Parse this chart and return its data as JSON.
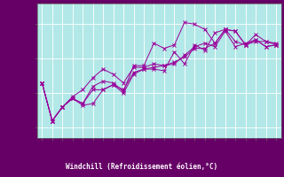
{
  "background_color": "#b3e8e8",
  "plot_bg_color": "#b3e8e8",
  "grid_color": "#ffffff",
  "line_color": "#990099",
  "marker_color": "#990099",
  "xlabel": "Windchill (Refroidissement éolien,°C)",
  "xlabel_color": "#ffffff",
  "xlabel_bg": "#660066",
  "tick_color": "#660066",
  "spine_color": "#666666",
  "xlim": [
    -0.5,
    23.5
  ],
  "ylim": [
    0.7,
    4.6
  ],
  "yticks": [
    1,
    2,
    3,
    4
  ],
  "xticks": [
    0,
    1,
    2,
    3,
    4,
    5,
    6,
    7,
    8,
    9,
    10,
    11,
    12,
    13,
    14,
    15,
    16,
    17,
    18,
    19,
    20,
    21,
    22,
    23
  ],
  "series": [
    [
      2.3,
      1.2,
      1.6,
      1.85,
      1.7,
      2.2,
      2.35,
      2.3,
      2.05,
      2.8,
      2.8,
      3.45,
      3.3,
      3.4,
      4.05,
      4.0,
      3.85,
      3.45,
      3.85,
      3.5,
      3.4,
      3.7,
      3.5,
      3.45
    ],
    [
      2.3,
      1.2,
      1.6,
      1.9,
      2.1,
      2.45,
      2.7,
      2.55,
      2.3,
      2.75,
      2.75,
      2.85,
      2.8,
      2.85,
      3.1,
      3.35,
      3.45,
      3.35,
      3.8,
      3.35,
      3.45,
      3.55,
      3.35,
      3.4
    ],
    [
      2.3,
      1.2,
      1.6,
      1.85,
      1.65,
      1.7,
      2.1,
      2.25,
      2.0,
      2.55,
      2.7,
      2.7,
      2.65,
      3.2,
      2.85,
      3.4,
      3.25,
      3.75,
      3.85,
      3.8,
      3.4,
      3.5,
      3.5,
      3.4
    ],
    [
      2.3,
      1.2,
      1.6,
      1.85,
      1.7,
      2.1,
      2.1,
      2.25,
      2.1,
      2.6,
      2.7,
      2.75,
      2.8,
      2.9,
      3.05,
      3.3,
      3.3,
      3.45,
      3.85,
      3.8,
      3.4,
      3.55,
      3.35,
      3.4
    ]
  ]
}
